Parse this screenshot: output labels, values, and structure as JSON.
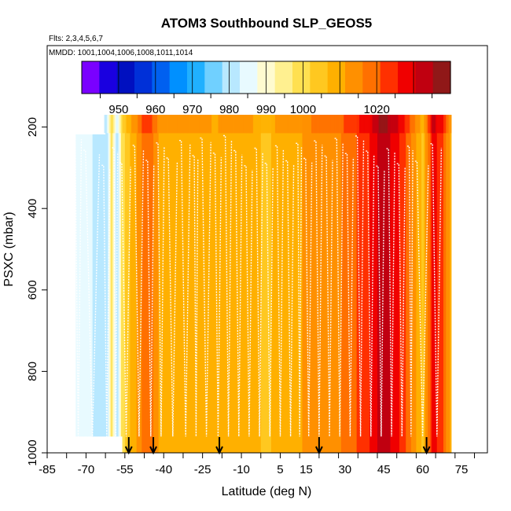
{
  "chart_data": {
    "type": "heatmap",
    "title": "ATOM3 Southbound SLP_GEOS5",
    "flights_note": "Flts: 2,3,4,5,6,7",
    "dates_note": "MMDD: 1001,1004,1006,1008,1011,1014",
    "xlabel": "Latitude (deg N)",
    "ylabel": "PSXC (mbar)",
    "xlim": [
      -85,
      85
    ],
    "ylim": [
      1000,
      0
    ],
    "x_ticks": [
      -85,
      -70,
      -55,
      -40,
      -25,
      -10,
      5,
      15,
      30,
      45,
      60,
      75
    ],
    "x_tick_labels": [
      "-85",
      "-70",
      "-55",
      "-40",
      "-25",
      "-10",
      "5",
      "15",
      "30",
      "45",
      "60",
      "75"
    ],
    "y_ticks": [
      200,
      400,
      600,
      800,
      1000
    ],
    "y_tick_labels": [
      "200",
      "400",
      "600",
      "800",
      "1000"
    ],
    "colorbar": {
      "min": 940,
      "max": 1040,
      "labels": [
        "950",
        "960",
        "970",
        "980",
        "990",
        "1000",
        "1020"
      ],
      "label_values": [
        950,
        960,
        970,
        980,
        990,
        1000,
        1020
      ],
      "colors": [
        "#7a00ff",
        "#1a00e0",
        "#0010c0",
        "#0030d8",
        "#0060f0",
        "#0090ff",
        "#20b0ff",
        "#70d0ff",
        "#b8e8ff",
        "#e8faff",
        "#fffbd0",
        "#fff090",
        "#ffe050",
        "#ffc820",
        "#ffb000",
        "#ff9000",
        "#ff7000",
        "#ff3000",
        "#f00000",
        "#c00010",
        "#901818"
      ]
    },
    "slp_profile": {
      "latitudes": [
        -74,
        -70,
        -66,
        -62,
        -60,
        -58,
        -56,
        -54,
        -52,
        -50,
        -48,
        -46,
        -44,
        -42,
        -40,
        -36,
        -32,
        -28,
        -24,
        -20,
        -16,
        -12,
        -8,
        -4,
        0,
        4,
        8,
        12,
        16,
        20,
        24,
        28,
        32,
        36,
        40,
        44,
        48,
        52,
        56,
        60,
        64,
        68,
        71
      ],
      "values": [
        985,
        984,
        982,
        978,
        1000,
        976,
        1001,
        1003,
        1009,
        1012,
        1018,
        1020,
        1016,
        1011,
        1009,
        1008,
        1010,
        1009,
        1008,
        1007,
        1009,
        1010,
        1008,
        1007,
        1006,
        1008,
        1009,
        1011,
        1012,
        1013,
        1014,
        1016,
        1019,
        1022,
        1026,
        1033,
        1030,
        1024,
        1015,
        1005,
        1028,
        1022,
        1008
      ]
    },
    "flight_arrow_latitudes": [
      -53.5,
      -44,
      -18.5,
      20,
      61.5
    ]
  }
}
